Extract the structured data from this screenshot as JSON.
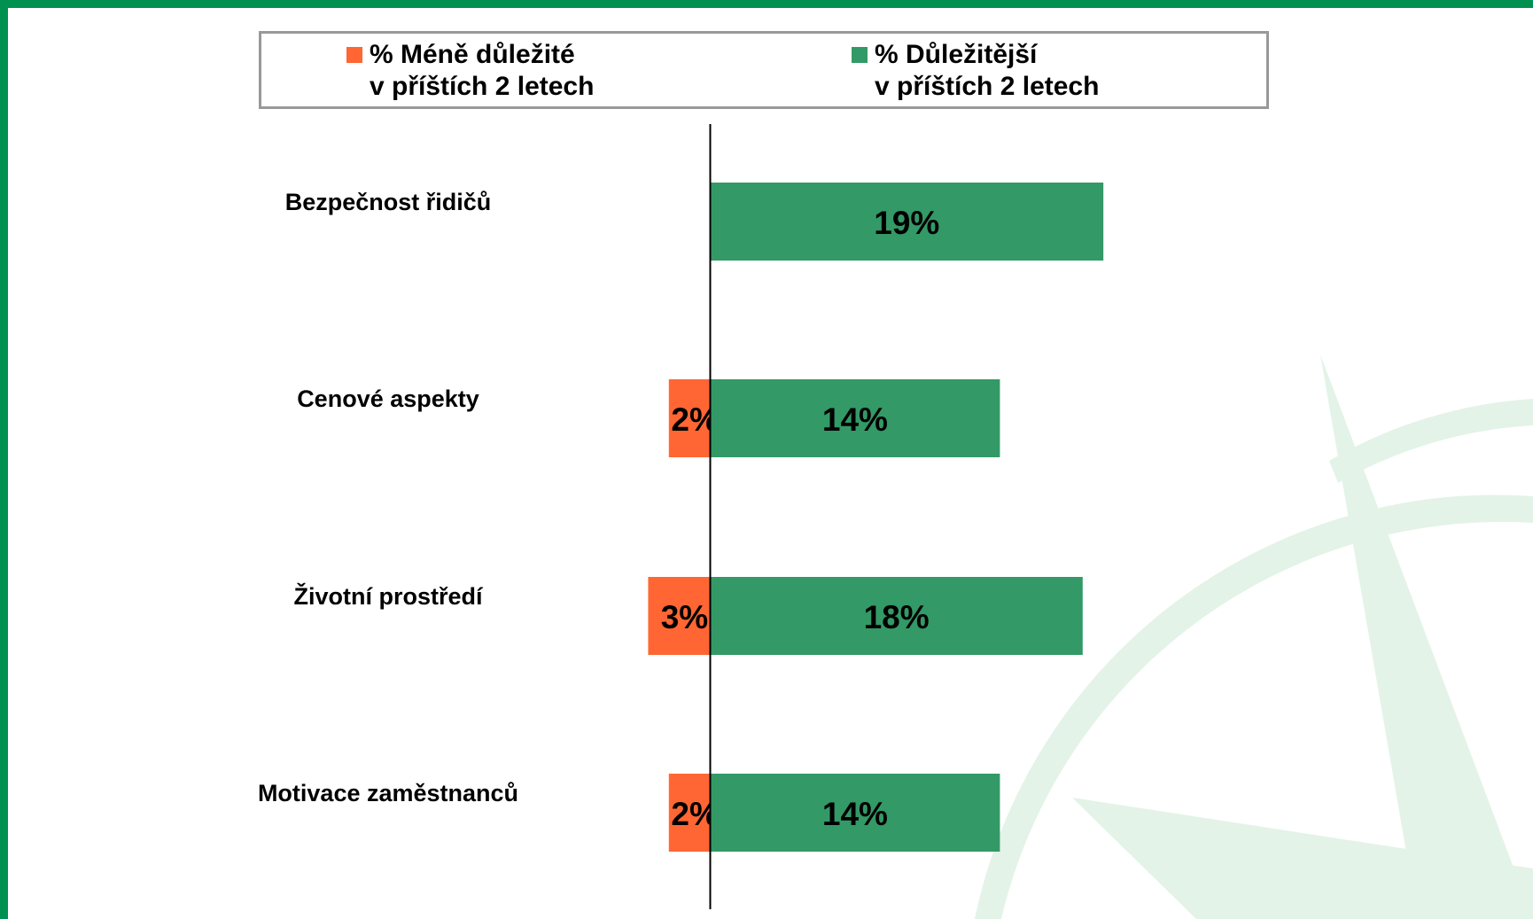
{
  "chart_data": {
    "type": "diverging",
    "categories": [
      "Bezpečnost řidičů",
      "Cenové aspekty",
      "Životní prostředí",
      "Motivace zaměstnanců"
    ],
    "series": [
      {
        "name": "% Méně důležité\nv příštích 2 letech",
        "color": "#ff6633",
        "values": [
          null,
          2,
          3,
          2
        ],
        "value_labels": [
          null,
          "2%",
          "3%",
          "2%"
        ]
      },
      {
        "name": "% Důležitější\nv příštích 2 letech",
        "color": "#339966",
        "values": [
          19,
          14,
          18,
          14
        ],
        "value_labels": [
          "19%",
          "14%",
          "18%",
          "14%"
        ]
      }
    ],
    "xlim": [
      -10,
      30
    ]
  }
}
